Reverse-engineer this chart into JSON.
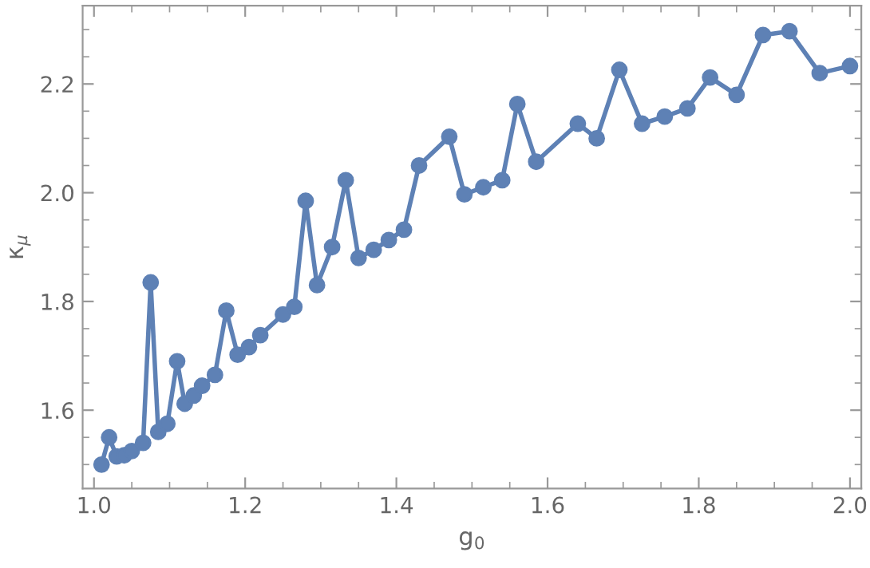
{
  "chart_data": {
    "type": "line",
    "xlabel": "g$_{0}$",
    "ylabel": "κ$_{μ}$",
    "x": [
      1.01,
      1.02,
      1.03,
      1.04,
      1.05,
      1.065,
      1.075,
      1.085,
      1.097,
      1.11,
      1.12,
      1.132,
      1.143,
      1.16,
      1.175,
      1.19,
      1.205,
      1.22,
      1.25,
      1.265,
      1.28,
      1.295,
      1.315,
      1.333,
      1.35,
      1.37,
      1.39,
      1.41,
      1.43,
      1.47,
      1.49,
      1.515,
      1.54,
      1.56,
      1.585,
      1.64,
      1.665,
      1.695,
      1.725,
      1.755,
      1.785,
      1.815,
      1.85,
      1.885,
      1.92,
      1.96,
      2.0
    ],
    "series": [
      {
        "color": "#5e81b5",
        "values": [
          1.5,
          1.55,
          1.515,
          1.517,
          1.525,
          1.54,
          1.835,
          1.56,
          1.575,
          1.69,
          1.612,
          1.627,
          1.645,
          1.665,
          1.783,
          1.702,
          1.716,
          1.738,
          1.776,
          1.79,
          1.985,
          1.83,
          1.9,
          2.023,
          1.88,
          1.895,
          1.913,
          1.932,
          2.05,
          2.103,
          1.997,
          2.01,
          2.023,
          2.163,
          2.057,
          2.127,
          2.1,
          2.226,
          2.127,
          2.14,
          2.155,
          2.212,
          2.18,
          2.29,
          2.297,
          2.22,
          2.233
        ]
      }
    ],
    "xlim": [
      0.985,
      2.015
    ],
    "ylim": [
      1.456,
      2.344
    ],
    "xticks": [
      {
        "value": 1.0,
        "label": "1.0"
      },
      1.2,
      1.4,
      1.6,
      1.8,
      {
        "value": 2.0,
        "label": "2.0"
      }
    ],
    "yticks": [
      1.6,
      1.8,
      {
        "value": 2.0,
        "label": "2.0"
      },
      2.2
    ],
    "marker": "circle",
    "line_style": "solid",
    "grid": false,
    "legend": false
  }
}
